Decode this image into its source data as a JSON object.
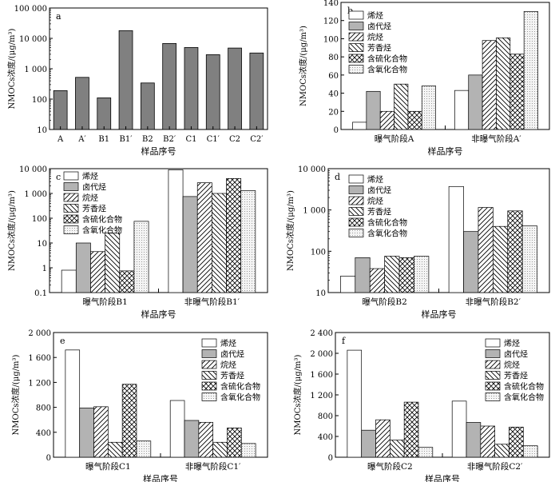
{
  "figure": {
    "patterns": {
      "olefin": "white",
      "halo": "gray",
      "alkane": "diag-fwd",
      "aromatic": "diag-back",
      "sulfur": "crosshatch",
      "oxygen": "dots"
    }
  },
  "chart_data": [
    {
      "panel_label": "a",
      "type": "bar",
      "scale": "log",
      "ylabel": "NMOCs浓度/(μg/m³)",
      "xlabel": "样品序号",
      "ylim": [
        10,
        100000
      ],
      "yticks": [
        10,
        100,
        1000,
        10000,
        100000
      ],
      "ytick_labels": [
        "10",
        "100",
        "1 000",
        "10 000",
        "100 000"
      ],
      "categories": [
        "A",
        "A′",
        "B1",
        "B1′",
        "B2",
        "B2′",
        "C1",
        "C1′",
        "C2",
        "C2′"
      ],
      "values": [
        190,
        520,
        110,
        18000,
        340,
        6800,
        5000,
        2900,
        4800,
        3300
      ],
      "bar_color": "#808080",
      "legend": false
    },
    {
      "panel_label": "b",
      "type": "bar",
      "scale": "linear",
      "ylabel": "NMOCs浓度/(μg/m³)",
      "xlabel": "样品序号",
      "ylim": [
        0,
        140
      ],
      "yticks": [
        0,
        20,
        40,
        60,
        80,
        100,
        120,
        140
      ],
      "ytick_labels": [
        "0",
        "20",
        "40",
        "60",
        "80",
        "100",
        "120",
        "140"
      ],
      "categories": [
        "曝气阶段A",
        "非曝气阶段A′"
      ],
      "legend": true,
      "series": [
        {
          "name": "烯烃",
          "pattern": "olefin",
          "values": [
            8,
            43
          ]
        },
        {
          "name": "卤代烃",
          "pattern": "halo",
          "values": [
            42,
            60
          ]
        },
        {
          "name": "烷烃",
          "pattern": "alkane",
          "values": [
            20,
            98
          ]
        },
        {
          "name": "芳香烃",
          "pattern": "aromatic",
          "values": [
            50,
            101
          ]
        },
        {
          "name": "含硫化合物",
          "pattern": "sulfur",
          "values": [
            20,
            83
          ]
        },
        {
          "name": "含氧化合物",
          "pattern": "oxygen",
          "values": [
            48,
            130
          ]
        }
      ]
    },
    {
      "panel_label": "c",
      "type": "bar",
      "scale": "log",
      "ylabel": "NMOCs浓度/(μg/m³)",
      "xlabel": "样品序号",
      "ylim": [
        0.1,
        10000
      ],
      "yticks": [
        0.1,
        1,
        10,
        100,
        1000,
        10000
      ],
      "ytick_labels": [
        "0.1",
        "1",
        "10",
        "100",
        "1 000",
        "10 000"
      ],
      "categories": [
        "曝气阶段B1",
        "非曝气阶段B1′"
      ],
      "legend": true,
      "series": [
        {
          "name": "烯烃",
          "pattern": "olefin",
          "values": [
            0.8,
            9000
          ]
        },
        {
          "name": "卤代烃",
          "pattern": "halo",
          "values": [
            10,
            750
          ]
        },
        {
          "name": "烷烃",
          "pattern": "alkane",
          "values": [
            4.5,
            2700
          ]
        },
        {
          "name": "芳香烃",
          "pattern": "aromatic",
          "values": [
            25,
            1000
          ]
        },
        {
          "name": "含硫化合物",
          "pattern": "sulfur",
          "values": [
            0.75,
            4000
          ]
        },
        {
          "name": "含氧化合物",
          "pattern": "oxygen",
          "values": [
            75,
            1300
          ]
        }
      ]
    },
    {
      "panel_label": "d",
      "type": "bar",
      "scale": "log",
      "ylabel": "NMOCs浓度/(μg/m³)",
      "xlabel": "样品序号",
      "ylim": [
        10,
        10000
      ],
      "yticks": [
        10,
        100,
        1000,
        10000
      ],
      "ytick_labels": [
        "10",
        "100",
        "1 000",
        "10 000"
      ],
      "categories": [
        "曝气阶段B2",
        "非曝气阶段B2′"
      ],
      "legend": true,
      "series": [
        {
          "name": "烯烃",
          "pattern": "olefin",
          "values": [
            25,
            3700
          ]
        },
        {
          "name": "卤代烃",
          "pattern": "halo",
          "values": [
            70,
            300
          ]
        },
        {
          "name": "烷烃",
          "pattern": "alkane",
          "values": [
            38,
            1150
          ]
        },
        {
          "name": "芳香烃",
          "pattern": "aromatic",
          "values": [
            76,
            400
          ]
        },
        {
          "name": "含硫化合物",
          "pattern": "sulfur",
          "values": [
            70,
            950
          ]
        },
        {
          "name": "含氧化合物",
          "pattern": "oxygen",
          "values": [
            76,
            410
          ]
        }
      ]
    },
    {
      "panel_label": "e",
      "type": "bar",
      "scale": "linear",
      "ylabel": "NMOCs浓度/(μg/m³)",
      "xlabel": "样品序号",
      "ylim": [
        0,
        2000
      ],
      "yticks": [
        0,
        400,
        800,
        1200,
        1600,
        2000
      ],
      "ytick_labels": [
        "0",
        "400",
        "800",
        "1 200",
        "1 600",
        "2 000"
      ],
      "categories": [
        "曝气阶段C1",
        "非曝气阶段C1′"
      ],
      "legend": true,
      "series": [
        {
          "name": "烯烃",
          "pattern": "olefin",
          "values": [
            1720,
            910
          ]
        },
        {
          "name": "卤代烃",
          "pattern": "halo",
          "values": [
            790,
            590
          ]
        },
        {
          "name": "烷烃",
          "pattern": "alkane",
          "values": [
            810,
            560
          ]
        },
        {
          "name": "芳香烃",
          "pattern": "aromatic",
          "values": [
            240,
            240
          ]
        },
        {
          "name": "含硫化合物",
          "pattern": "sulfur",
          "values": [
            1170,
            470
          ]
        },
        {
          "name": "含氧化合物",
          "pattern": "oxygen",
          "values": [
            260,
            220
          ]
        }
      ]
    },
    {
      "panel_label": "f",
      "type": "bar",
      "scale": "linear",
      "ylabel": "NMOCs浓度/(μg/m³)",
      "xlabel": "样品序号",
      "ylim": [
        0,
        2400
      ],
      "yticks": [
        0,
        400,
        800,
        1200,
        1600,
        2000,
        2400
      ],
      "ytick_labels": [
        "0",
        "400",
        "800",
        "1 200",
        "1 600",
        "2 000",
        "2 400"
      ],
      "categories": [
        "曝气阶段C2",
        "非曝气阶段C2′"
      ],
      "legend": true,
      "series": [
        {
          "name": "烯烃",
          "pattern": "olefin",
          "values": [
            2060,
            1080
          ]
        },
        {
          "name": "卤代烃",
          "pattern": "halo",
          "values": [
            520,
            670
          ]
        },
        {
          "name": "烷烃",
          "pattern": "alkane",
          "values": [
            720,
            600
          ]
        },
        {
          "name": "芳香烃",
          "pattern": "aromatic",
          "values": [
            330,
            250
          ]
        },
        {
          "name": "含硫化合物",
          "pattern": "sulfur",
          "values": [
            1060,
            580
          ]
        },
        {
          "name": "含氧化合物",
          "pattern": "oxygen",
          "values": [
            190,
            220
          ]
        }
      ]
    }
  ]
}
